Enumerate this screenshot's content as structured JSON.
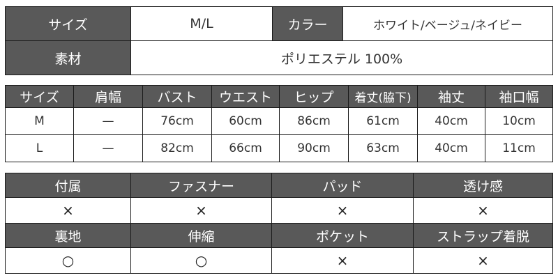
{
  "summary": {
    "size_label": "サイズ",
    "size_value": "M/L",
    "color_label": "カラー",
    "color_value": "ホワイト/ベージュ/ネイビー",
    "material_label": "素材",
    "material_value": "ポリエステル 100%"
  },
  "measurements": {
    "headers": [
      "サイズ",
      "肩幅",
      "バスト",
      "ウエスト",
      "ヒップ",
      "着丈(脇下)",
      "袖丈",
      "袖口幅"
    ],
    "rows": [
      [
        "M",
        "—",
        "76cm",
        "60cm",
        "86cm",
        "61cm",
        "40cm",
        "10cm"
      ],
      [
        "L",
        "—",
        "82cm",
        "66cm",
        "90cm",
        "63cm",
        "40cm",
        "11cm"
      ]
    ]
  },
  "features": {
    "row1_headers": [
      "付属",
      "ファスナー",
      "パッド",
      "透け感"
    ],
    "row1_values": [
      "×",
      "×",
      "×",
      "×"
    ],
    "row2_headers": [
      "裏地",
      "伸縮",
      "ポケット",
      "ストラップ着脱"
    ],
    "row2_values": [
      "○",
      "○",
      "×",
      "×"
    ]
  }
}
